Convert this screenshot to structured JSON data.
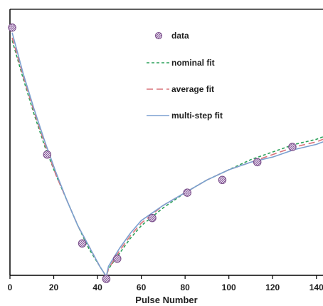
{
  "chart_data": {
    "type": "line",
    "title": "",
    "xlabel": "Pulse Number",
    "ylabel": "",
    "xlim": [
      0,
      143
    ],
    "ylim": [
      0,
      1
    ],
    "x_ticks": [
      "0",
      "20",
      "40",
      "60",
      "80",
      "100",
      "120",
      "140"
    ],
    "x_tick_values": [
      0,
      20,
      40,
      60,
      80,
      100,
      120,
      140
    ],
    "grid": false,
    "legend_position": "top-center",
    "series": [
      {
        "name": "data",
        "kind": "scatter",
        "marker": "circle-hatched",
        "color": "#7a4f8a",
        "x": [
          1,
          17,
          33,
          44,
          49,
          65,
          81,
          97,
          113,
          129
        ],
        "y": [
          0.97,
          0.47,
          0.12,
          -0.02,
          0.06,
          0.22,
          0.32,
          0.37,
          0.44,
          0.5
        ]
      },
      {
        "name": "nominal fit",
        "kind": "line",
        "dash": "4,3",
        "color": "#2ca05a",
        "x": [
          1,
          6,
          11,
          16,
          21,
          26,
          31,
          36,
          41,
          44,
          45,
          50,
          55,
          60,
          70,
          80,
          90,
          100,
          110,
          120,
          130,
          140,
          143
        ],
        "y": [
          0.92,
          0.77,
          0.63,
          0.5,
          0.39,
          0.29,
          0.19,
          0.1,
          0.03,
          -0.01,
          0.02,
          0.08,
          0.14,
          0.19,
          0.26,
          0.32,
          0.37,
          0.41,
          0.45,
          0.48,
          0.51,
          0.53,
          0.54
        ]
      },
      {
        "name": "average fit",
        "kind": "line",
        "dash": "9,5",
        "color": "#d9737a",
        "x": [
          1,
          6,
          11,
          16,
          21,
          26,
          31,
          36,
          41,
          44,
          45,
          50,
          55,
          60,
          70,
          80,
          90,
          100,
          110,
          120,
          130,
          140,
          143
        ],
        "y": [
          0.93,
          0.78,
          0.64,
          0.51,
          0.39,
          0.29,
          0.19,
          0.11,
          0.03,
          -0.01,
          0.02,
          0.09,
          0.15,
          0.2,
          0.27,
          0.32,
          0.37,
          0.41,
          0.44,
          0.47,
          0.5,
          0.52,
          0.53
        ]
      },
      {
        "name": "multi-step fit",
        "kind": "line",
        "dash": "",
        "color": "#7ba0d0",
        "x": [
          1,
          6,
          11,
          16,
          21,
          26,
          31,
          36,
          41,
          44,
          45,
          50,
          55,
          60,
          70,
          80,
          90,
          100,
          110,
          120,
          130,
          140,
          143
        ],
        "y": [
          0.95,
          0.79,
          0.65,
          0.52,
          0.4,
          0.29,
          0.19,
          0.11,
          0.03,
          -0.01,
          0.03,
          0.1,
          0.16,
          0.21,
          0.27,
          0.32,
          0.37,
          0.41,
          0.44,
          0.46,
          0.49,
          0.51,
          0.52
        ]
      }
    ]
  }
}
